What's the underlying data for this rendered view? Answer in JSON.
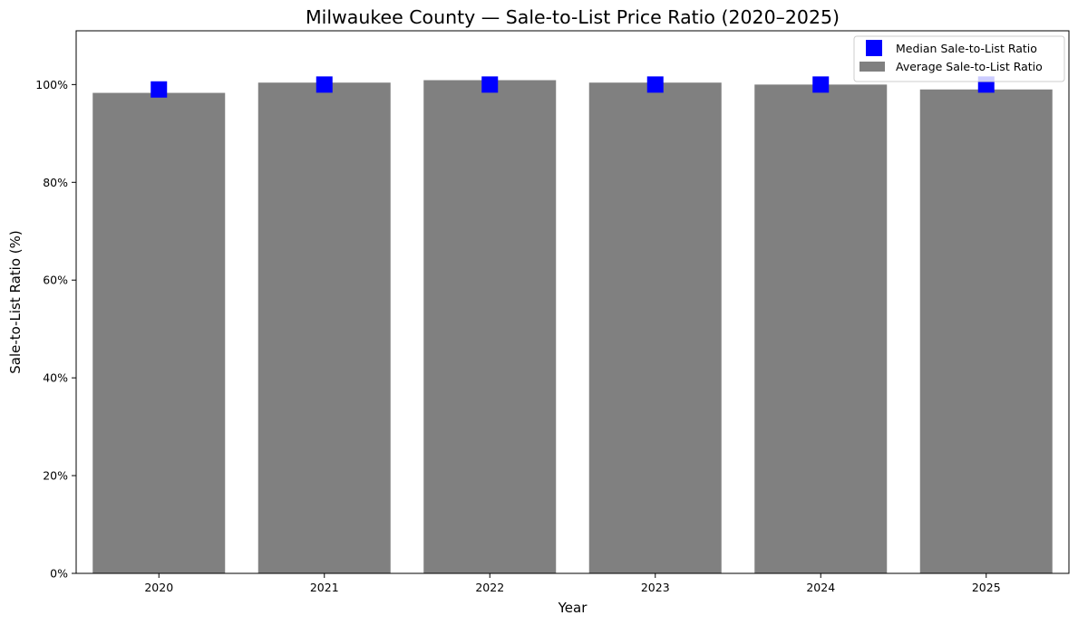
{
  "chart_data": {
    "type": "bar",
    "title": "Milwaukee County — Sale-to-List Price Ratio (2020–2025)",
    "xlabel": "Year",
    "ylabel": "Sale-to-List Ratio (%)",
    "categories": [
      "2020",
      "2021",
      "2022",
      "2023",
      "2024",
      "2025"
    ],
    "series": [
      {
        "name": "Average Sale-to-List Ratio",
        "kind": "bar",
        "color": "#808080",
        "values": [
          98.3,
          100.4,
          100.9,
          100.4,
          100.0,
          99.0
        ]
      },
      {
        "name": "Median Sale-to-List Ratio",
        "kind": "marker",
        "marker": "square",
        "color": "#0000ff",
        "values": [
          99.0,
          100.0,
          100.0,
          100.0,
          100.0,
          100.0
        ]
      }
    ],
    "ylim": [
      0,
      111
    ],
    "yticks": [
      0,
      20,
      40,
      60,
      80,
      100
    ],
    "ytick_labels": [
      "0%",
      "20%",
      "40%",
      "60%",
      "80%",
      "100%"
    ],
    "grid": false,
    "legend_position": "top-right"
  }
}
